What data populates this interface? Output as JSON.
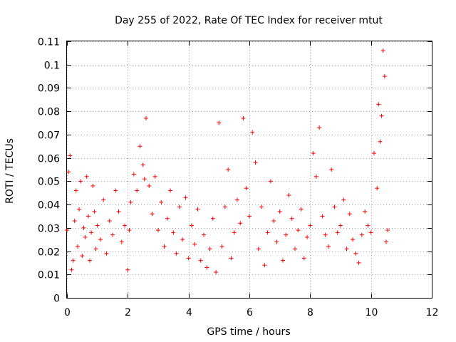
{
  "chart_data": {
    "type": "scatter",
    "title": "Day 255 of 2022, Rate Of TEC Index for receiver mtut",
    "xlabel": "GPS time / hours",
    "ylabel": "ROTI / TECUs",
    "xlim": [
      0,
      12
    ],
    "ylim": [
      0,
      0.11
    ],
    "x_ticks": [
      "0",
      "2",
      "4",
      "6",
      "8",
      "10",
      "12"
    ],
    "y_ticks": [
      "0",
      "0.01",
      "0.02",
      "0.03",
      "0.04",
      "0.05",
      "0.06",
      "0.07",
      "0.08",
      "0.09",
      "0.1",
      "0.11"
    ],
    "x_tick_values": [
      0,
      2,
      4,
      6,
      8,
      10,
      12
    ],
    "y_tick_values": [
      0,
      0.01,
      0.02,
      0.03,
      0.04,
      0.05,
      0.06,
      0.07,
      0.08,
      0.09,
      0.1,
      0.11
    ],
    "grid": true,
    "marker": "+",
    "color": "#ff0000",
    "series": [
      {
        "x": [
          0.0,
          0.05,
          0.1,
          0.15,
          0.2,
          0.25,
          0.3,
          0.35,
          0.4,
          0.45,
          0.5,
          0.55,
          0.6,
          0.65,
          0.7,
          0.75,
          0.8,
          0.85,
          0.9,
          0.95,
          1.0,
          1.1,
          1.2,
          1.3,
          1.4,
          1.5,
          1.6,
          1.7,
          1.8,
          1.9,
          2.0,
          2.05,
          2.1,
          2.2,
          2.3,
          2.4,
          2.5,
          2.55,
          2.6,
          2.7,
          2.8,
          2.9,
          3.0,
          3.1,
          3.2,
          3.3,
          3.4,
          3.5,
          3.6,
          3.7,
          3.8,
          3.9,
          4.0,
          4.1,
          4.2,
          4.3,
          4.4,
          4.5,
          4.6,
          4.7,
          4.8,
          4.9,
          5.0,
          5.1,
          5.2,
          5.3,
          5.4,
          5.5,
          5.6,
          5.7,
          5.8,
          5.9,
          6.0,
          6.1,
          6.2,
          6.3,
          6.4,
          6.5,
          6.6,
          6.7,
          6.8,
          6.9,
          7.0,
          7.1,
          7.2,
          7.3,
          7.4,
          7.5,
          7.6,
          7.7,
          7.8,
          7.9,
          8.0,
          8.1,
          8.2,
          8.3,
          8.4,
          8.5,
          8.6,
          8.7,
          8.8,
          8.9,
          9.0,
          9.1,
          9.2,
          9.3,
          9.4,
          9.5,
          9.6,
          9.7,
          9.8,
          9.9,
          10.0,
          10.1,
          10.2,
          10.25,
          10.3,
          10.35,
          10.4,
          10.45,
          10.5,
          10.55
        ],
        "y": [
          0.029,
          0.054,
          0.061,
          0.012,
          0.016,
          0.033,
          0.046,
          0.022,
          0.038,
          0.05,
          0.018,
          0.03,
          0.026,
          0.052,
          0.035,
          0.016,
          0.028,
          0.048,
          0.037,
          0.021,
          0.031,
          0.025,
          0.042,
          0.019,
          0.033,
          0.027,
          0.046,
          0.037,
          0.024,
          0.031,
          0.012,
          0.029,
          0.041,
          0.053,
          0.046,
          0.065,
          0.057,
          0.051,
          0.077,
          0.048,
          0.036,
          0.052,
          0.029,
          0.041,
          0.022,
          0.034,
          0.046,
          0.028,
          0.019,
          0.039,
          0.025,
          0.043,
          0.017,
          0.031,
          0.023,
          0.038,
          0.016,
          0.027,
          0.013,
          0.021,
          0.034,
          0.011,
          0.075,
          0.022,
          0.039,
          0.055,
          0.017,
          0.028,
          0.042,
          0.032,
          0.077,
          0.047,
          0.035,
          0.071,
          0.058,
          0.021,
          0.039,
          0.014,
          0.028,
          0.05,
          0.033,
          0.024,
          0.037,
          0.016,
          0.027,
          0.044,
          0.034,
          0.021,
          0.029,
          0.038,
          0.017,
          0.026,
          0.031,
          0.062,
          0.052,
          0.073,
          0.035,
          0.027,
          0.022,
          0.055,
          0.039,
          0.028,
          0.031,
          0.042,
          0.021,
          0.036,
          0.025,
          0.019,
          0.015,
          0.027,
          0.037,
          0.031,
          0.028,
          0.062,
          0.047,
          0.083,
          0.067,
          0.078,
          0.106,
          0.095,
          0.024,
          0.029
        ]
      }
    ]
  }
}
